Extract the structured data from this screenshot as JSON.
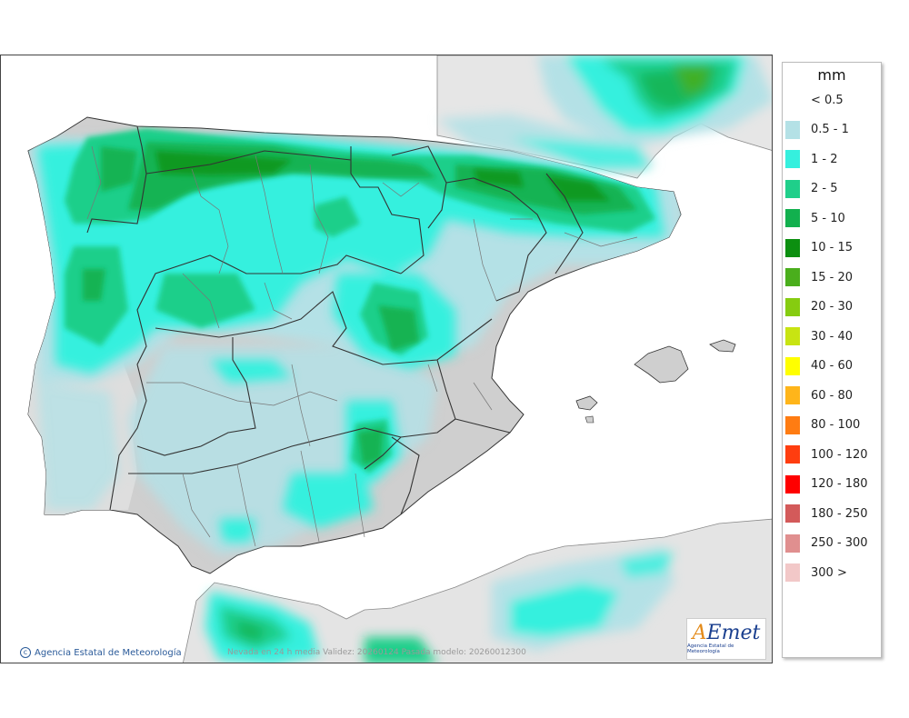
{
  "map": {
    "legend": {
      "unit": "mm",
      "classes": [
        {
          "label": "< 0.5",
          "color": "#ffffff"
        },
        {
          "label": "0.5 - 1",
          "color": "#b4e1e6"
        },
        {
          "label": "1 - 2",
          "color": "#35f0de"
        },
        {
          "label": "2 - 5",
          "color": "#1fcf8a"
        },
        {
          "label": "5 - 10",
          "color": "#12b04e"
        },
        {
          "label": "10 - 15",
          "color": "#0c8f10"
        },
        {
          "label": "15 - 20",
          "color": "#4aae1c"
        },
        {
          "label": "20 - 30",
          "color": "#86cc10"
        },
        {
          "label": "30 - 40",
          "color": "#c8e412"
        },
        {
          "label": "40 - 60",
          "color": "#ffff00"
        },
        {
          "label": "60 - 80",
          "color": "#ffb51a"
        },
        {
          "label": "80 - 100",
          "color": "#ff7c12"
        },
        {
          "label": "100 - 120",
          "color": "#ff3d0f"
        },
        {
          "label": "120 - 180",
          "color": "#ff0000"
        },
        {
          "label": "180 - 250",
          "color": "#d35a5a"
        },
        {
          "label": "250 - 300",
          "color": "#e08f8f"
        },
        {
          "label": "300 >",
          "color": "#f2c8c8"
        }
      ]
    },
    "credit": "Agencia Estatal de Meteorología",
    "footer": "Nevada en 24 h media  Validez: 20260124 Pasada modelo: 20260012300",
    "logo": {
      "word_a": "A",
      "word_rest": "Emet",
      "subtitle": "Agencia Estatal de Meteorología"
    }
  }
}
